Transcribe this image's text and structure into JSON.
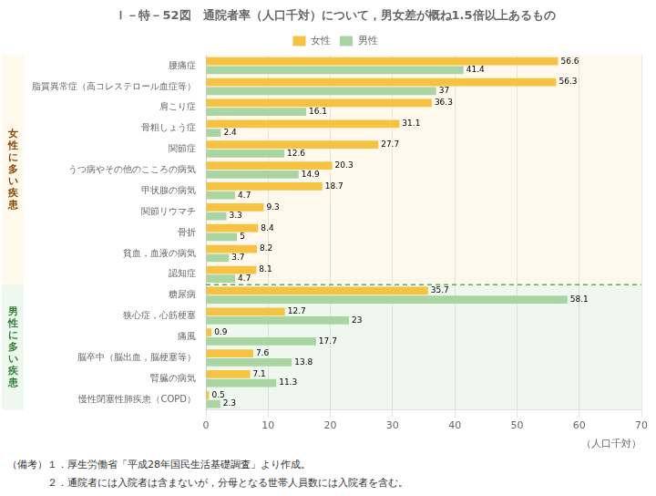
{
  "chart_data": {
    "type": "bar",
    "orientation": "horizontal",
    "title": "Ｉ－特－52図　通院者率（人口千対）について，男女差が概ね1.5倍以上あるもの",
    "xlabel": "（人口千対）",
    "categories": [
      "腰痛症",
      "脂質異常症（高コレステロール血症等）",
      "肩こり症",
      "骨粗しょう症",
      "関節症",
      "うつ病やその他のこころの病気",
      "甲状腺の病気",
      "関節リウマチ",
      "骨折",
      "貧血，血液の病気",
      "認知症",
      "糖尿病",
      "狭心症，心筋梗塞",
      "痛風",
      "脳卒中（脳出血，脳梗塞等）",
      "腎臓の病気",
      "慢性閉塞性肺疾患（COPD）"
    ],
    "series": [
      {
        "name": "女性",
        "color": "#F5C242",
        "values": [
          56.6,
          56.3,
          36.3,
          31.1,
          27.7,
          20.3,
          18.7,
          9.3,
          8.4,
          8.2,
          8.1,
          35.7,
          12.7,
          0.9,
          7.6,
          7.1,
          0.5
        ]
      },
      {
        "name": "男性",
        "color": "#A8D5A2",
        "values": [
          41.4,
          37.0,
          16.1,
          2.4,
          12.6,
          14.9,
          4.7,
          3.3,
          5.0,
          3.7,
          4.7,
          58.1,
          23.0,
          17.7,
          13.8,
          11.3,
          2.3
        ]
      }
    ],
    "xlim": [
      0,
      70
    ],
    "xticks": [
      0,
      10,
      20,
      30,
      40,
      50,
      60,
      70
    ],
    "grid": true,
    "legend": "top",
    "data_labels": true,
    "annotations": [
      {
        "text": "女性に多い疾患",
        "from": "腰痛症",
        "to": "認知症"
      },
      {
        "text": "男性に多い疾患",
        "from": "糖尿病",
        "to": "慢性閉塞性肺疾患（COPD）"
      }
    ],
    "notes": [
      "（備考）１．厚生労働省「平成28年国民生活基礎調査」より作成。",
      "　　　　２．通院者には入院者は含まないが，分母となる世帯人員数には入院者を含む。"
    ]
  }
}
